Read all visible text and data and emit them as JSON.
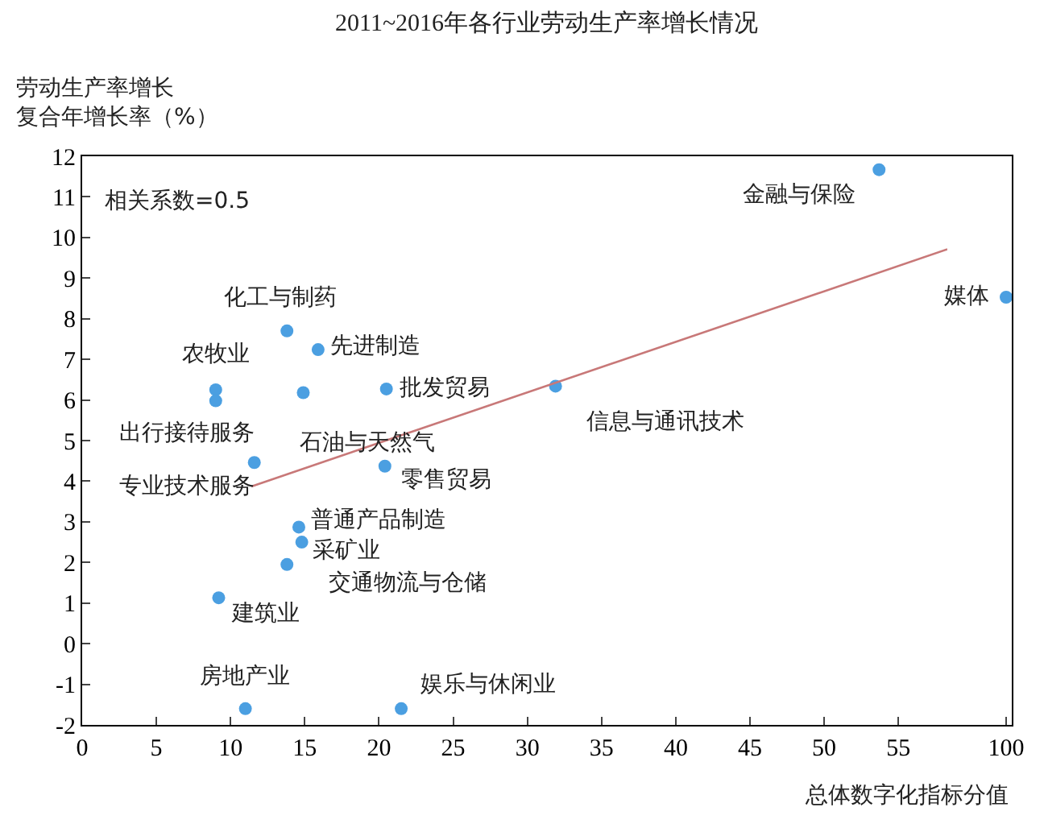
{
  "chart_data": [
    {
      "type": "scatter",
      "title": "2011~2016年各行业劳动生产率增长情况",
      "ylabel": "劳动生产率增长复合年增长率（%）",
      "xlabel": "总体数字化指标分值",
      "marker": "circle",
      "xlim": [
        0,
        58.3
      ],
      "xticks": [
        0,
        5,
        10,
        15,
        20,
        25,
        30,
        35,
        40,
        45,
        50,
        55
      ],
      "ylim": [
        -2,
        12
      ],
      "yticks": [
        -2,
        -1,
        0,
        1,
        2,
        3,
        4,
        5,
        6,
        7,
        8,
        9,
        10,
        11,
        12
      ],
      "series": [
        {
          "color": "#4b9fe1",
          "x": [
            53.7,
            13.8,
            15.9,
            9.0,
            9.0,
            14.9,
            20.5,
            31.9,
            11.6,
            20.4,
            14.6,
            14.8,
            13.8,
            9.2,
            11.0,
            21.5
          ],
          "values": [
            11.67,
            7.7,
            7.24,
            6.25,
            5.98,
            6.18,
            6.27,
            6.34,
            4.46,
            4.37,
            2.87,
            2.5,
            1.95,
            1.13,
            -1.6,
            -1.6
          ]
        },
        {
          "type": "line",
          "marker": "none",
          "color": "#c87878",
          "x": [
            11.4,
            58.3
          ],
          "values": [
            3.87,
            9.71
          ]
        }
      ],
      "annotations": [
        "相关系数=0.5",
        {
          "text": "金融与保险",
          "x": 53.7,
          "y": 11.67
        },
        {
          "text": "化工与制药",
          "x": 13.8,
          "y": 7.7
        },
        {
          "text": "先进制造",
          "x": 15.9,
          "y": 7.24
        },
        {
          "text": "农牧业",
          "x": 9.0,
          "y": 6.25
        },
        {
          "text": "出行接待服务",
          "x": 9.0,
          "y": 5.98
        },
        {
          "text": "石油与天然气",
          "x": 14.9,
          "y": 6.18
        },
        {
          "text": "批发贸易",
          "x": 20.5,
          "y": 6.27
        },
        {
          "text": "信息与通讯技术",
          "x": 31.9,
          "y": 6.34
        },
        {
          "text": "专业技术服务",
          "x": 11.6,
          "y": 4.46
        },
        {
          "text": "零售贸易",
          "x": 20.4,
          "y": 4.37
        },
        {
          "text": "普通产品制造",
          "x": 14.6,
          "y": 2.87
        },
        {
          "text": "采矿业",
          "x": 14.8,
          "y": 2.5
        },
        {
          "text": "交通物流与仓储",
          "x": 13.8,
          "y": 1.95
        },
        {
          "text": "建筑业",
          "x": 9.2,
          "y": 1.13
        },
        {
          "text": "房地产业",
          "x": 11.0,
          "y": -1.6
        },
        {
          "text": "娱乐与休闲业",
          "x": 21.5,
          "y": -1.6
        }
      ]
    },
    {
      "type": "scatter",
      "marker": "circle",
      "tick_labels": "x",
      "categories": [
        "100"
      ],
      "ylim": [
        -2,
        12
      ],
      "series": [
        {
          "color": "#4b9fe1",
          "values": [
            8.53
          ]
        }
      ],
      "annotations": [
        {
          "text": "媒体",
          "x": "100",
          "y": 8.53
        }
      ]
    }
  ]
}
